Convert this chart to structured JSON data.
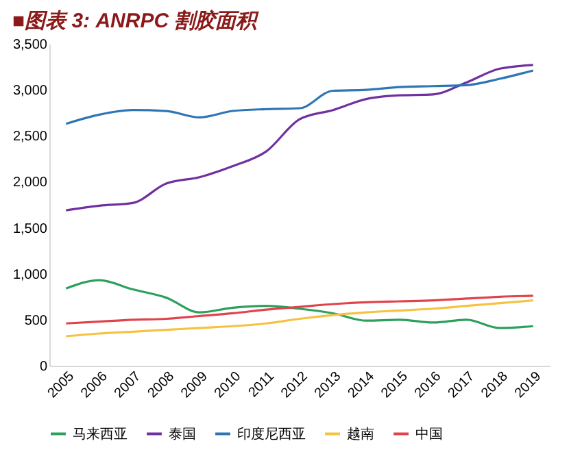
{
  "chart_data": {
    "type": "line",
    "title": "■图表 3: ANRPC 割胶面积",
    "categories": [
      "2005",
      "2006",
      "2007",
      "2008",
      "2009",
      "2010",
      "2011",
      "2012",
      "2013",
      "2014",
      "2015",
      "2016",
      "2017",
      "2018",
      "2019"
    ],
    "series": [
      {
        "name": "马来西亚",
        "color": "#2ca05c",
        "values": [
          840,
          930,
          830,
          740,
          580,
          630,
          650,
          620,
          570,
          490,
          500,
          470,
          500,
          410,
          430
        ]
      },
      {
        "name": "泰国",
        "color": "#7030a0",
        "values": [
          1690,
          1740,
          1770,
          1980,
          2050,
          2170,
          2330,
          2680,
          2780,
          2900,
          2940,
          2950,
          3080,
          3230,
          3270
        ]
      },
      {
        "name": "印度尼西亚",
        "color": "#2e75b6",
        "values": [
          2630,
          2730,
          2780,
          2770,
          2700,
          2770,
          2790,
          2800,
          2990,
          3000,
          3030,
          3040,
          3050,
          3120,
          3210
        ]
      },
      {
        "name": "越南",
        "color": "#f5c242",
        "values": [
          320,
          350,
          370,
          390,
          410,
          430,
          460,
          510,
          550,
          580,
          600,
          620,
          650,
          680,
          710
        ]
      },
      {
        "name": "中国",
        "color": "#e0434b",
        "values": [
          460,
          480,
          500,
          510,
          540,
          570,
          610,
          640,
          670,
          690,
          700,
          710,
          730,
          750,
          760
        ]
      }
    ],
    "ylim": [
      0,
      3500
    ],
    "yticks": [
      0,
      500,
      {
        "value": 1000,
        "label": "1,000"
      },
      {
        "value": 1500,
        "label": "1,500"
      },
      {
        "value": 2000,
        "label": "2,000"
      },
      {
        "value": 2500,
        "label": "2,500"
      },
      {
        "value": 3000,
        "label": "3,000"
      },
      {
        "value": 3500,
        "label": "3,500"
      }
    ],
    "grid": false,
    "legend": "bottom",
    "marker": "none",
    "line_style": "solid"
  }
}
